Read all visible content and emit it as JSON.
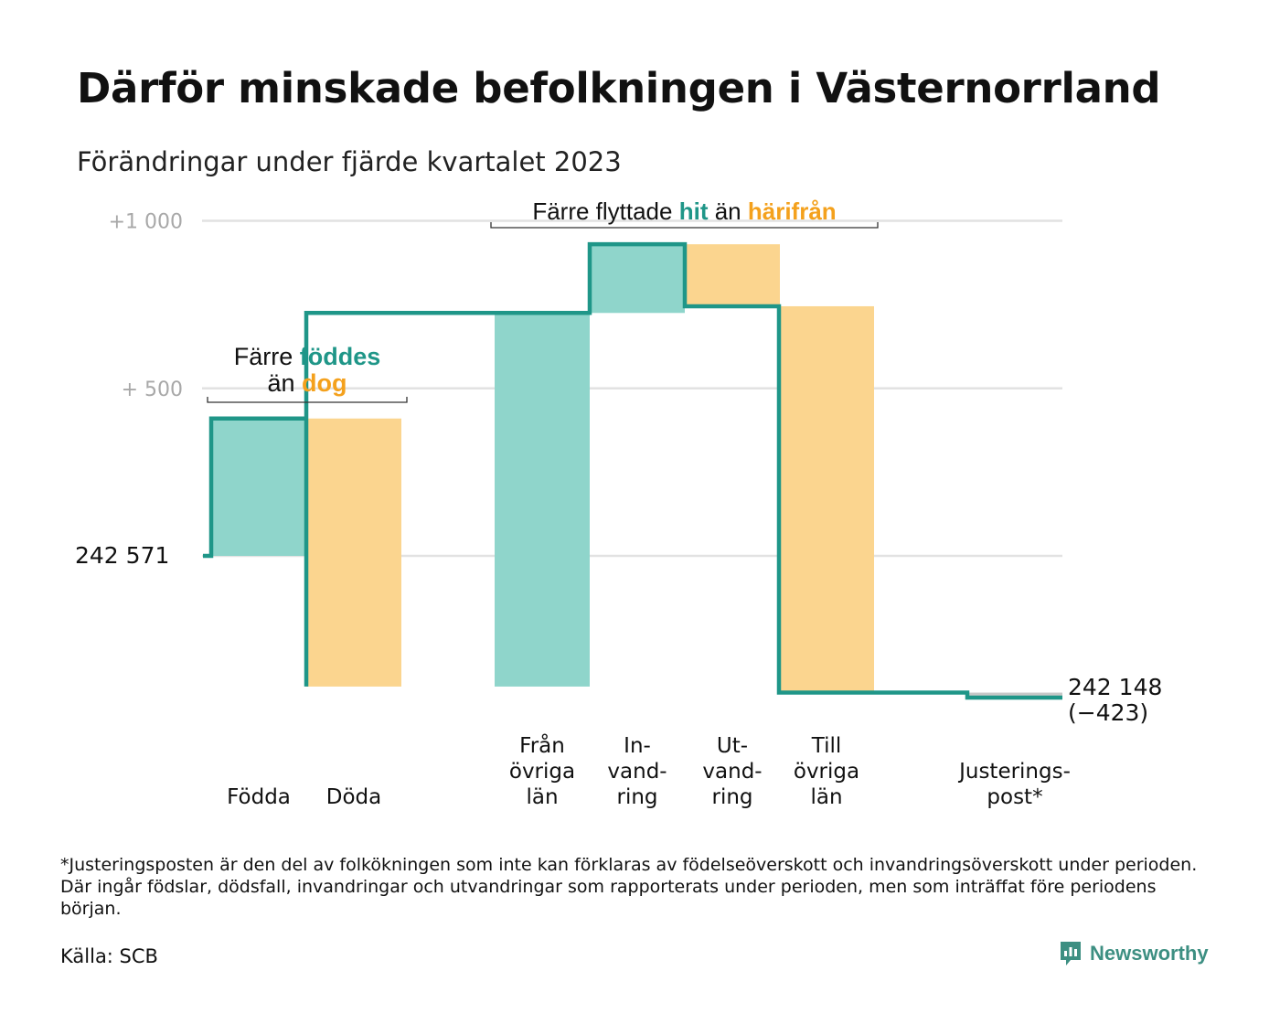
{
  "title": "Därför minskade befolkningen i Västernorrland",
  "subtitle": "Förändringar under fjärde kvartalet 2023",
  "footnote": "*Justeringsposten är den del av folkökningen som inte kan förklaras av födelseöverskott och invandringsöverskott under perioden. Där ingår födslar, dödsfall, invandringar och utvandringar som rapporterats under perioden, men som inträffat före periodens början.",
  "source": "Källa: SCB",
  "brand": {
    "name": "Newsworthy",
    "icon": "newsworthy-logo-icon"
  },
  "colors": {
    "inflow": "#8fd5cb",
    "outflow": "#fbd58f",
    "adjustment": "#c8c8c8",
    "line": "#1f9688",
    "gridline": "#e2e2e2",
    "teal_text": "#1f9688",
    "orange_text": "#f4a11d"
  },
  "chart_data": {
    "type": "waterfall",
    "start": {
      "value": 242571,
      "label": "242   571"
    },
    "end": {
      "value": 242148,
      "label": "242 148",
      "change_label": "(−423)"
    },
    "ylim": [
      -390,
      1000
    ],
    "grid": true,
    "ticks": [
      {
        "value": 500,
        "label": "+   500"
      },
      {
        "value": 1000,
        "label": "+1   000"
      }
    ],
    "steps": [
      {
        "label_lines": [
          "Födda"
        ],
        "start": 0,
        "end": 410,
        "kind": "inflow"
      },
      {
        "label_lines": [
          "Döda"
        ],
        "start": 410,
        "end": -390,
        "kind": "outflow"
      },
      {
        "label_lines": [
          "Från",
          "övriga",
          "län"
        ],
        "start": -390,
        "end": 725,
        "kind": "inflow"
      },
      {
        "label_lines": [
          "In-",
          "vand-",
          "ring"
        ],
        "start": 725,
        "end": 930,
        "kind": "inflow"
      },
      {
        "label_lines": [
          "Ut-",
          "vand-",
          "ring"
        ],
        "start": 930,
        "end": 745,
        "kind": "outflow"
      },
      {
        "label_lines": [
          "Till",
          "övriga",
          "län"
        ],
        "start": 745,
        "end": -408,
        "kind": "outflow"
      },
      {
        "label_lines": [
          "Justerings-",
          "post*"
        ],
        "start": -408,
        "end": -423,
        "kind": "adjustment"
      }
    ],
    "annotations": [
      {
        "parts": [
          {
            "text": "Färre",
            "tone": "plain"
          },
          {
            "text": "föddes",
            "tone": "teal"
          }
        ],
        "parts2": [
          {
            "text": "än",
            "tone": "plain"
          },
          {
            "text": "dog",
            "tone": "orange"
          }
        ],
        "span": [
          0,
          1
        ]
      },
      {
        "parts": [
          {
            "text": "Färre flyttade",
            "tone": "plain"
          },
          {
            "text": "hit",
            "tone": "teal"
          },
          {
            "text": "än",
            "tone": "plain"
          },
          {
            "text": "härifrån",
            "tone": "orange"
          }
        ],
        "span": [
          2,
          5
        ]
      }
    ]
  }
}
